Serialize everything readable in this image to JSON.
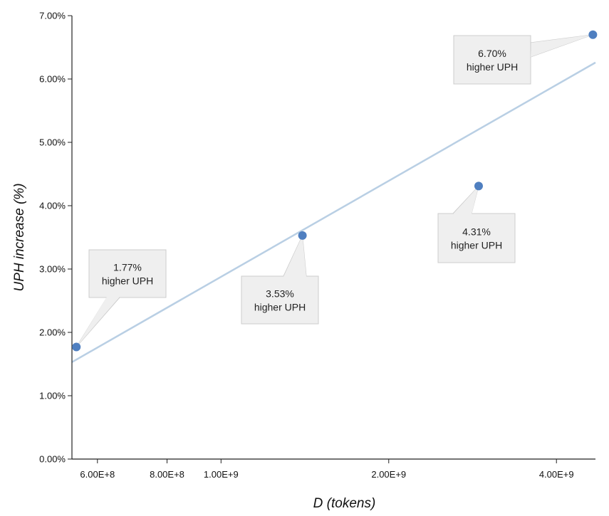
{
  "chart_data": {
    "type": "scatter",
    "x_scale": "log",
    "xlabel": "D (tokens)",
    "ylabel": "UPH increase (%)",
    "xlim": [
      540000000,
      4700000000
    ],
    "ylim": [
      0,
      7
    ],
    "x_ticks": [
      {
        "value": 600000000,
        "label": "6.00E+8"
      },
      {
        "value": 800000000,
        "label": "8.00E+8"
      },
      {
        "value": 1000000000,
        "label": "1.00E+9"
      },
      {
        "value": 2000000000,
        "label": "2.00E+9"
      },
      {
        "value": 4000000000,
        "label": "4.00E+9"
      }
    ],
    "y_ticks": [
      {
        "value": 0,
        "label": "0.00%"
      },
      {
        "value": 1,
        "label": "1.00%"
      },
      {
        "value": 2,
        "label": "2.00%"
      },
      {
        "value": 3,
        "label": "3.00%"
      },
      {
        "value": 4,
        "label": "4.00%"
      },
      {
        "value": 5,
        "label": "5.00%"
      },
      {
        "value": 6,
        "label": "6.00%"
      },
      {
        "value": 7,
        "label": "7.00%"
      }
    ],
    "points": [
      {
        "x": 550000000,
        "y": 1.77
      },
      {
        "x": 1400000000,
        "y": 3.53
      },
      {
        "x": 2900000000,
        "y": 4.31
      },
      {
        "x": 4650000000,
        "y": 6.7
      }
    ],
    "trendline": {
      "type": "log",
      "from": {
        "x": 540000000,
        "y": 1.53
      },
      "to": {
        "x": 4700000000,
        "y": 6.26
      }
    },
    "annotations": [
      {
        "point_index": 0,
        "lines": [
          "1.77%",
          "higher UPH"
        ],
        "position": "above-right"
      },
      {
        "point_index": 1,
        "lines": [
          "3.53%",
          "higher UPH"
        ],
        "position": "below"
      },
      {
        "point_index": 2,
        "lines": [
          "4.31%",
          "higher UPH"
        ],
        "position": "below-right"
      },
      {
        "point_index": 3,
        "lines": [
          "6.70%",
          "higher UPH"
        ],
        "position": "left"
      }
    ],
    "grid": false,
    "legend": "none",
    "colors": {
      "point": "#4f7fc0",
      "trendline": "#b9cfe4",
      "callout_fill": "#efefef",
      "callout_border": "#cccccc",
      "axis": "#222222"
    }
  }
}
